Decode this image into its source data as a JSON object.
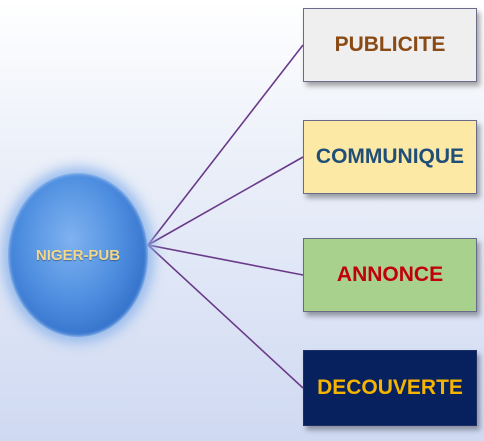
{
  "hub": {
    "label": "NIGER-PUB"
  },
  "boxes": [
    {
      "label": "PUBLICITE"
    },
    {
      "label": "COMMUNIQUE"
    },
    {
      "label": "ANNONCE"
    },
    {
      "label": "DECOUVERTE"
    }
  ],
  "colors": {
    "connector": "#6a3a8a",
    "hub_fill": "#4f8fe0",
    "hub_text": "#f4d88a",
    "box1_fill": "#efefef",
    "box1_text": "#8a4a14",
    "box2_fill": "#fde9a6",
    "box2_text": "#1f4e78",
    "box3_fill": "#a9d18e",
    "box3_text": "#c0000a",
    "box4_fill": "#07205e",
    "box4_text": "#f5b400"
  }
}
